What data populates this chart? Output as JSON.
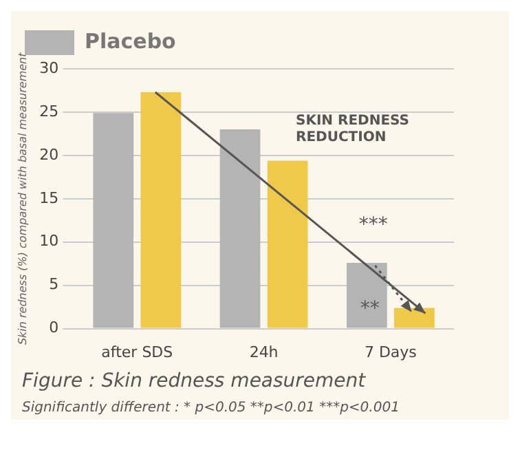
{
  "chart_data": {
    "type": "bar",
    "categories": [
      "after SDS",
      "24h",
      "7 Days"
    ],
    "series": [
      {
        "name": "Placebo",
        "color": "#b4b4b4",
        "values": [
          24.9,
          23.0,
          7.6
        ]
      },
      {
        "color": "#f0c84a",
        "values": [
          27.3,
          19.4,
          2.4
        ]
      }
    ],
    "ylabel": "Skin redness (%) compared with basal measurement",
    "ylim": [
      0,
      30
    ],
    "yticks": [
      0,
      5,
      10,
      15,
      20,
      25,
      30
    ],
    "grid": "y",
    "legend": "top",
    "annotations": [
      "SKIN REDNESS REDUCTION",
      "***",
      {
        "text": "**",
        "x": "7 Days",
        "y": 7.6
      },
      "Figure : Skin redness measurement",
      "Significantly different : * p<0.05 **p<0.01 ***p<0.001"
    ]
  }
}
